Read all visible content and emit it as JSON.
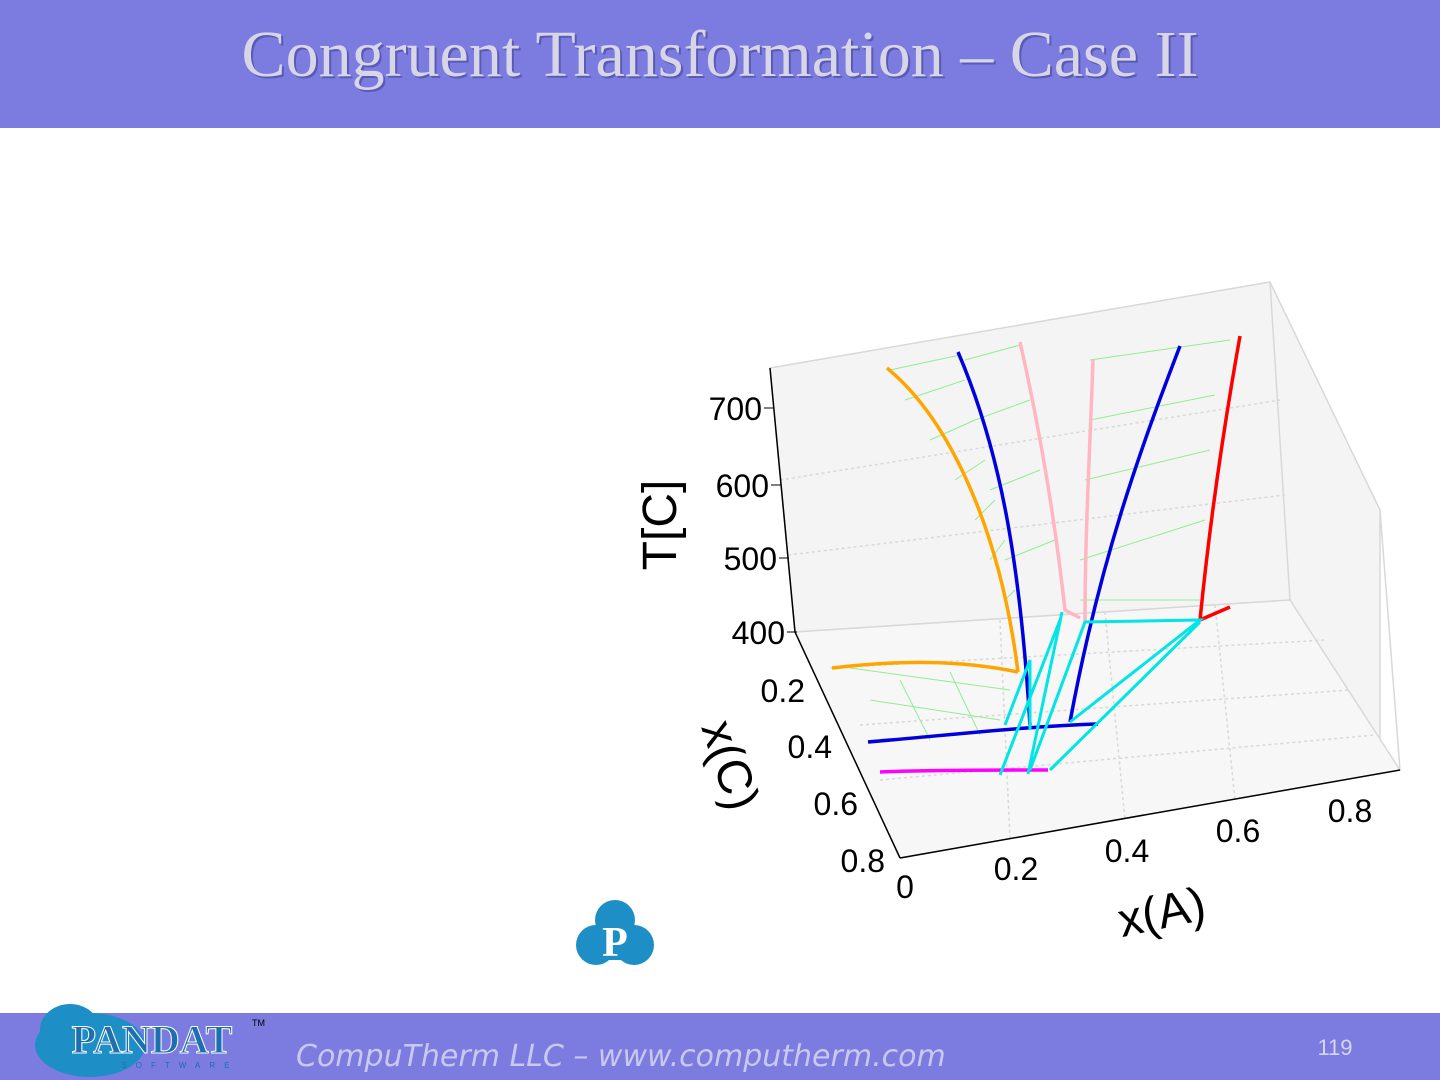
{
  "header": {
    "title": "Congruent Transformation – Case II"
  },
  "figure": {
    "z_axis": {
      "label": "T[C]",
      "ticks": [
        "700",
        "600",
        "500",
        "400"
      ]
    },
    "y_axis": {
      "label": "x(C)",
      "ticks": [
        "0.2",
        "0.4",
        "0.6",
        "0.8"
      ]
    },
    "x_axis": {
      "label": "x(A)",
      "ticks": [
        "0",
        "0.2",
        "0.4",
        "0.6",
        "0.8"
      ]
    },
    "badge": "P"
  },
  "footer": {
    "brand": "PANDAT",
    "brand_sub": "SOFTWARE",
    "trademark": "TM",
    "company": "CompuTherm LLC – www.computherm.com",
    "page": "119"
  }
}
